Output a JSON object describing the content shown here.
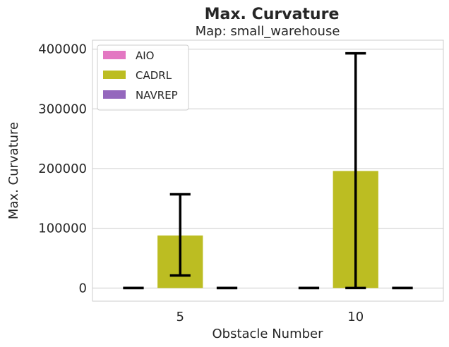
{
  "chart_data": {
    "type": "bar",
    "title": "Max. Curvature",
    "subtitle": "Map: small_warehouse",
    "xlabel": "Obstacle Number",
    "ylabel": "Max. Curvature",
    "categories": [
      "5",
      "10"
    ],
    "ylim": [
      -22000,
      415000
    ],
    "yticks": [
      0,
      100000,
      200000,
      300000,
      400000
    ],
    "ytick_labels": [
      "0",
      "100000",
      "200000",
      "300000",
      "400000"
    ],
    "grid": "horizontal",
    "legend_position": "top-left",
    "series": [
      {
        "name": "AIO",
        "color": "#e377c2",
        "values": [
          0,
          0
        ],
        "err_low": [
          0,
          0
        ],
        "err_high": [
          0,
          0
        ]
      },
      {
        "name": "CADRL",
        "color": "#bcbd22",
        "values": [
          88000,
          196000
        ],
        "err_low": [
          21000,
          0
        ],
        "err_high": [
          157000,
          393000
        ]
      },
      {
        "name": "NAVREP",
        "color": "#9467bd",
        "values": [
          0,
          0
        ],
        "err_low": [
          0,
          0
        ],
        "err_high": [
          0,
          0
        ]
      }
    ]
  }
}
